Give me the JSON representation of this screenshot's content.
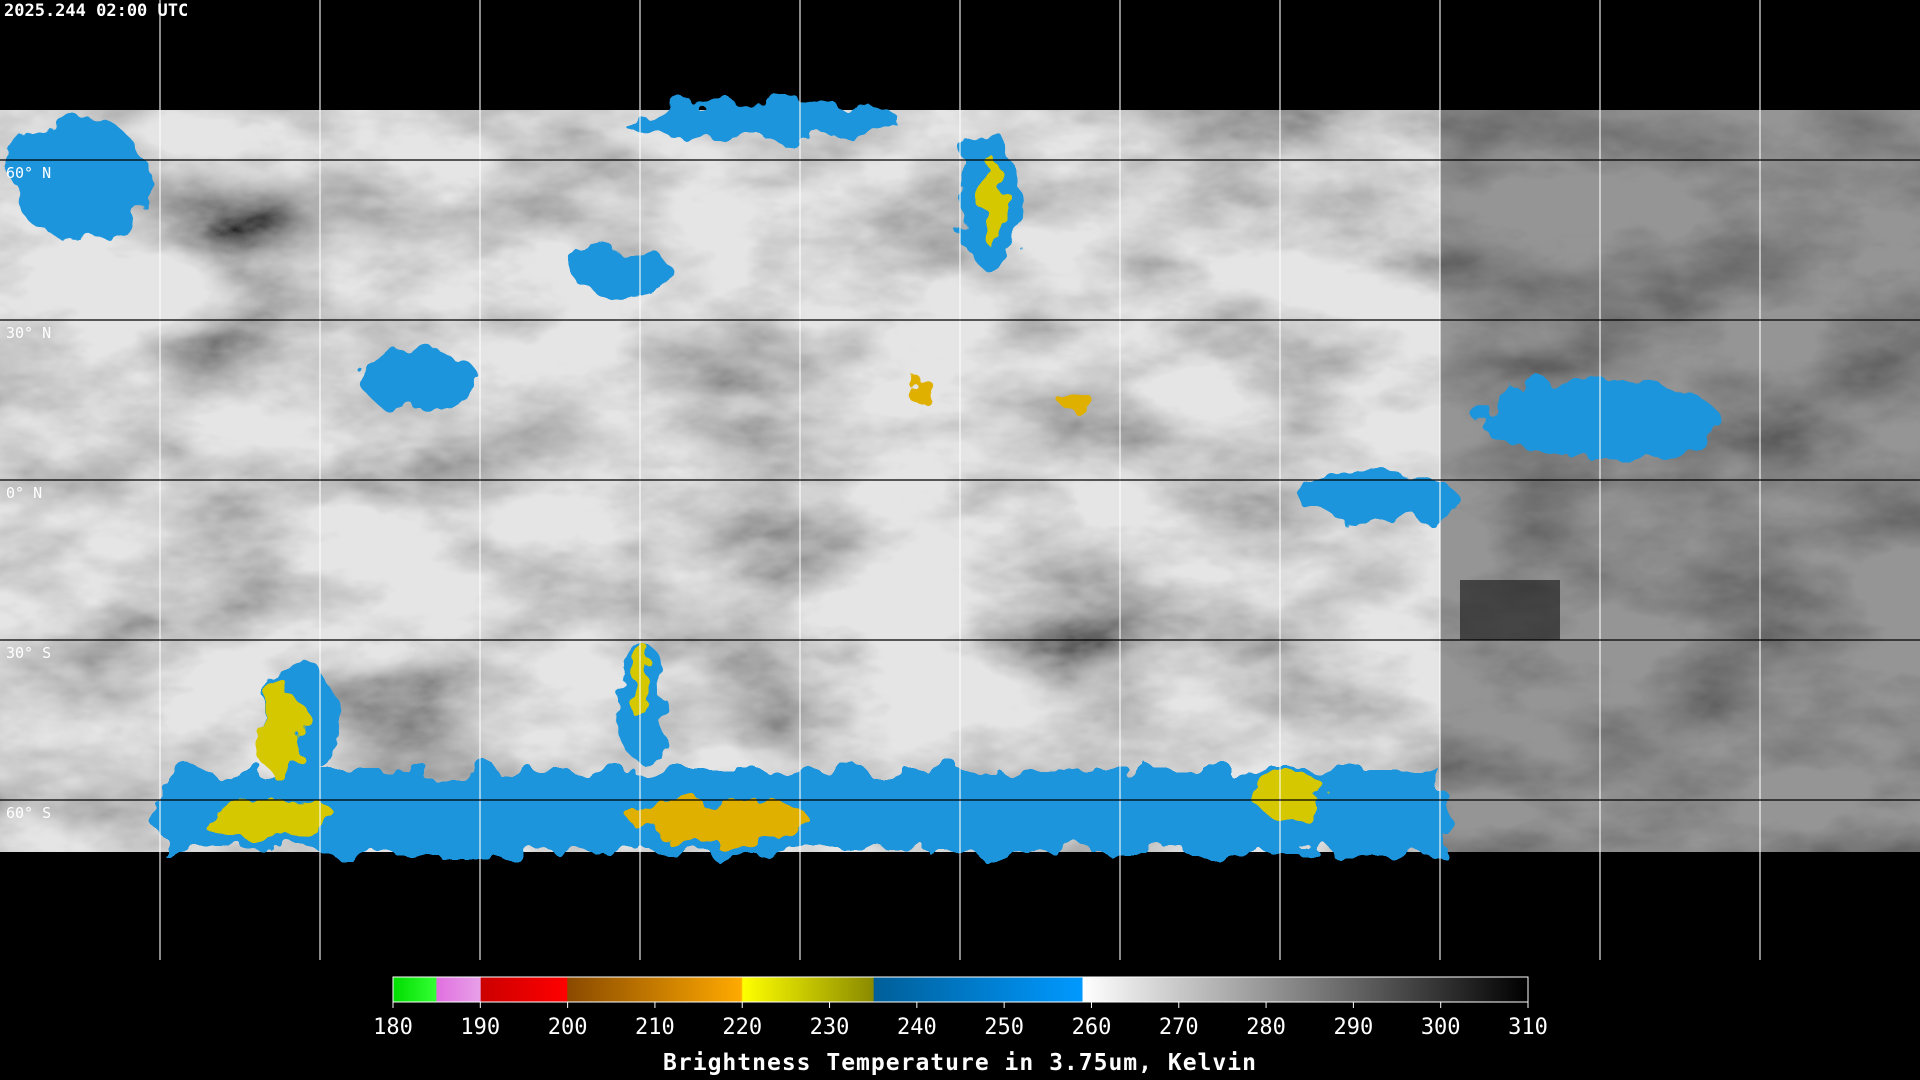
{
  "header": {
    "title": "2025.244 02:00 UTC"
  },
  "map": {
    "lat_labels": [
      "60° N",
      "30° N",
      "0° N",
      "30° S",
      "60° S"
    ]
  },
  "colorbar": {
    "range": [
      180,
      310
    ],
    "ticks": [
      180,
      190,
      200,
      210,
      220,
      230,
      240,
      250,
      260,
      270,
      280,
      290,
      300,
      310
    ],
    "label": "Brightness Temperature in 3.75um, Kelvin"
  }
}
